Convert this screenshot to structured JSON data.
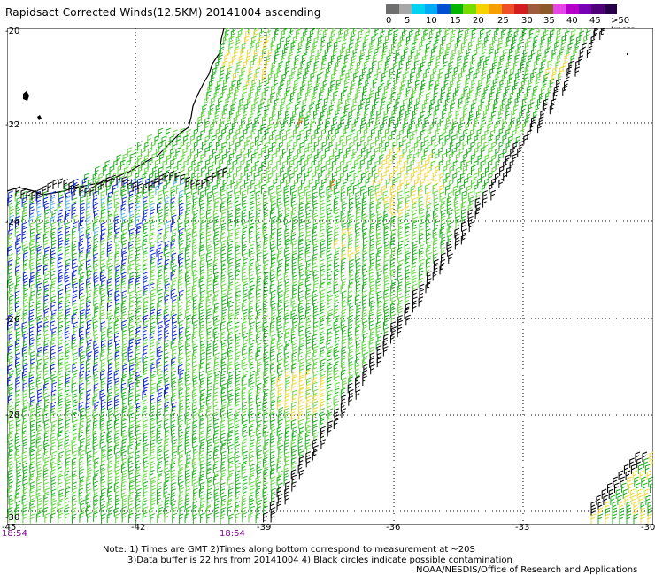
{
  "title": "Rapidsact Corrected Winds(12.5KM) 20141004 ascending",
  "legend": {
    "colors": [
      "#6e6e6e",
      "#a8a8a8",
      "#00d2f0",
      "#00aaf5",
      "#0050d2",
      "#00b400",
      "#78dc00",
      "#f5d200",
      "#f5a000",
      "#f05028",
      "#d21e1e",
      "#a05a3c",
      "#8c5a28",
      "#e646e6",
      "#b400c8",
      "#7800b4",
      "#500078",
      "#28004a"
    ],
    "labels": [
      "0",
      "5",
      "10",
      "15",
      "20",
      "25",
      "30",
      "35",
      "40",
      "45",
      ">50 knots"
    ],
    "units": "knots"
  },
  "axes": {
    "lat_labels": [
      "-20",
      "-22",
      "-24",
      "-26",
      "-28",
      "-30"
    ],
    "lon_labels": [
      "-45",
      "-42",
      "-39",
      "-36",
      "-33",
      "-30"
    ]
  },
  "times": {
    "left": "18:54",
    "mid": "18:54"
  },
  "notes": {
    "line1": "Note: 1) Times are GMT 2)Times along bottom correspond to measurement at ~20S",
    "line2": "3)Data buffer is 22 hrs from 20141004 4) Black circles indicate possible contamination",
    "line3": "NOAA/NESDIS/Office of Research and Applications"
  },
  "wind_colors": {
    "green": "#22b022",
    "light_green": "#66d644",
    "blue": "#1028c8",
    "cyan": "#5ab4e6",
    "yellow": "#f0d840",
    "black": "#000000",
    "orange": "#e87820"
  }
}
